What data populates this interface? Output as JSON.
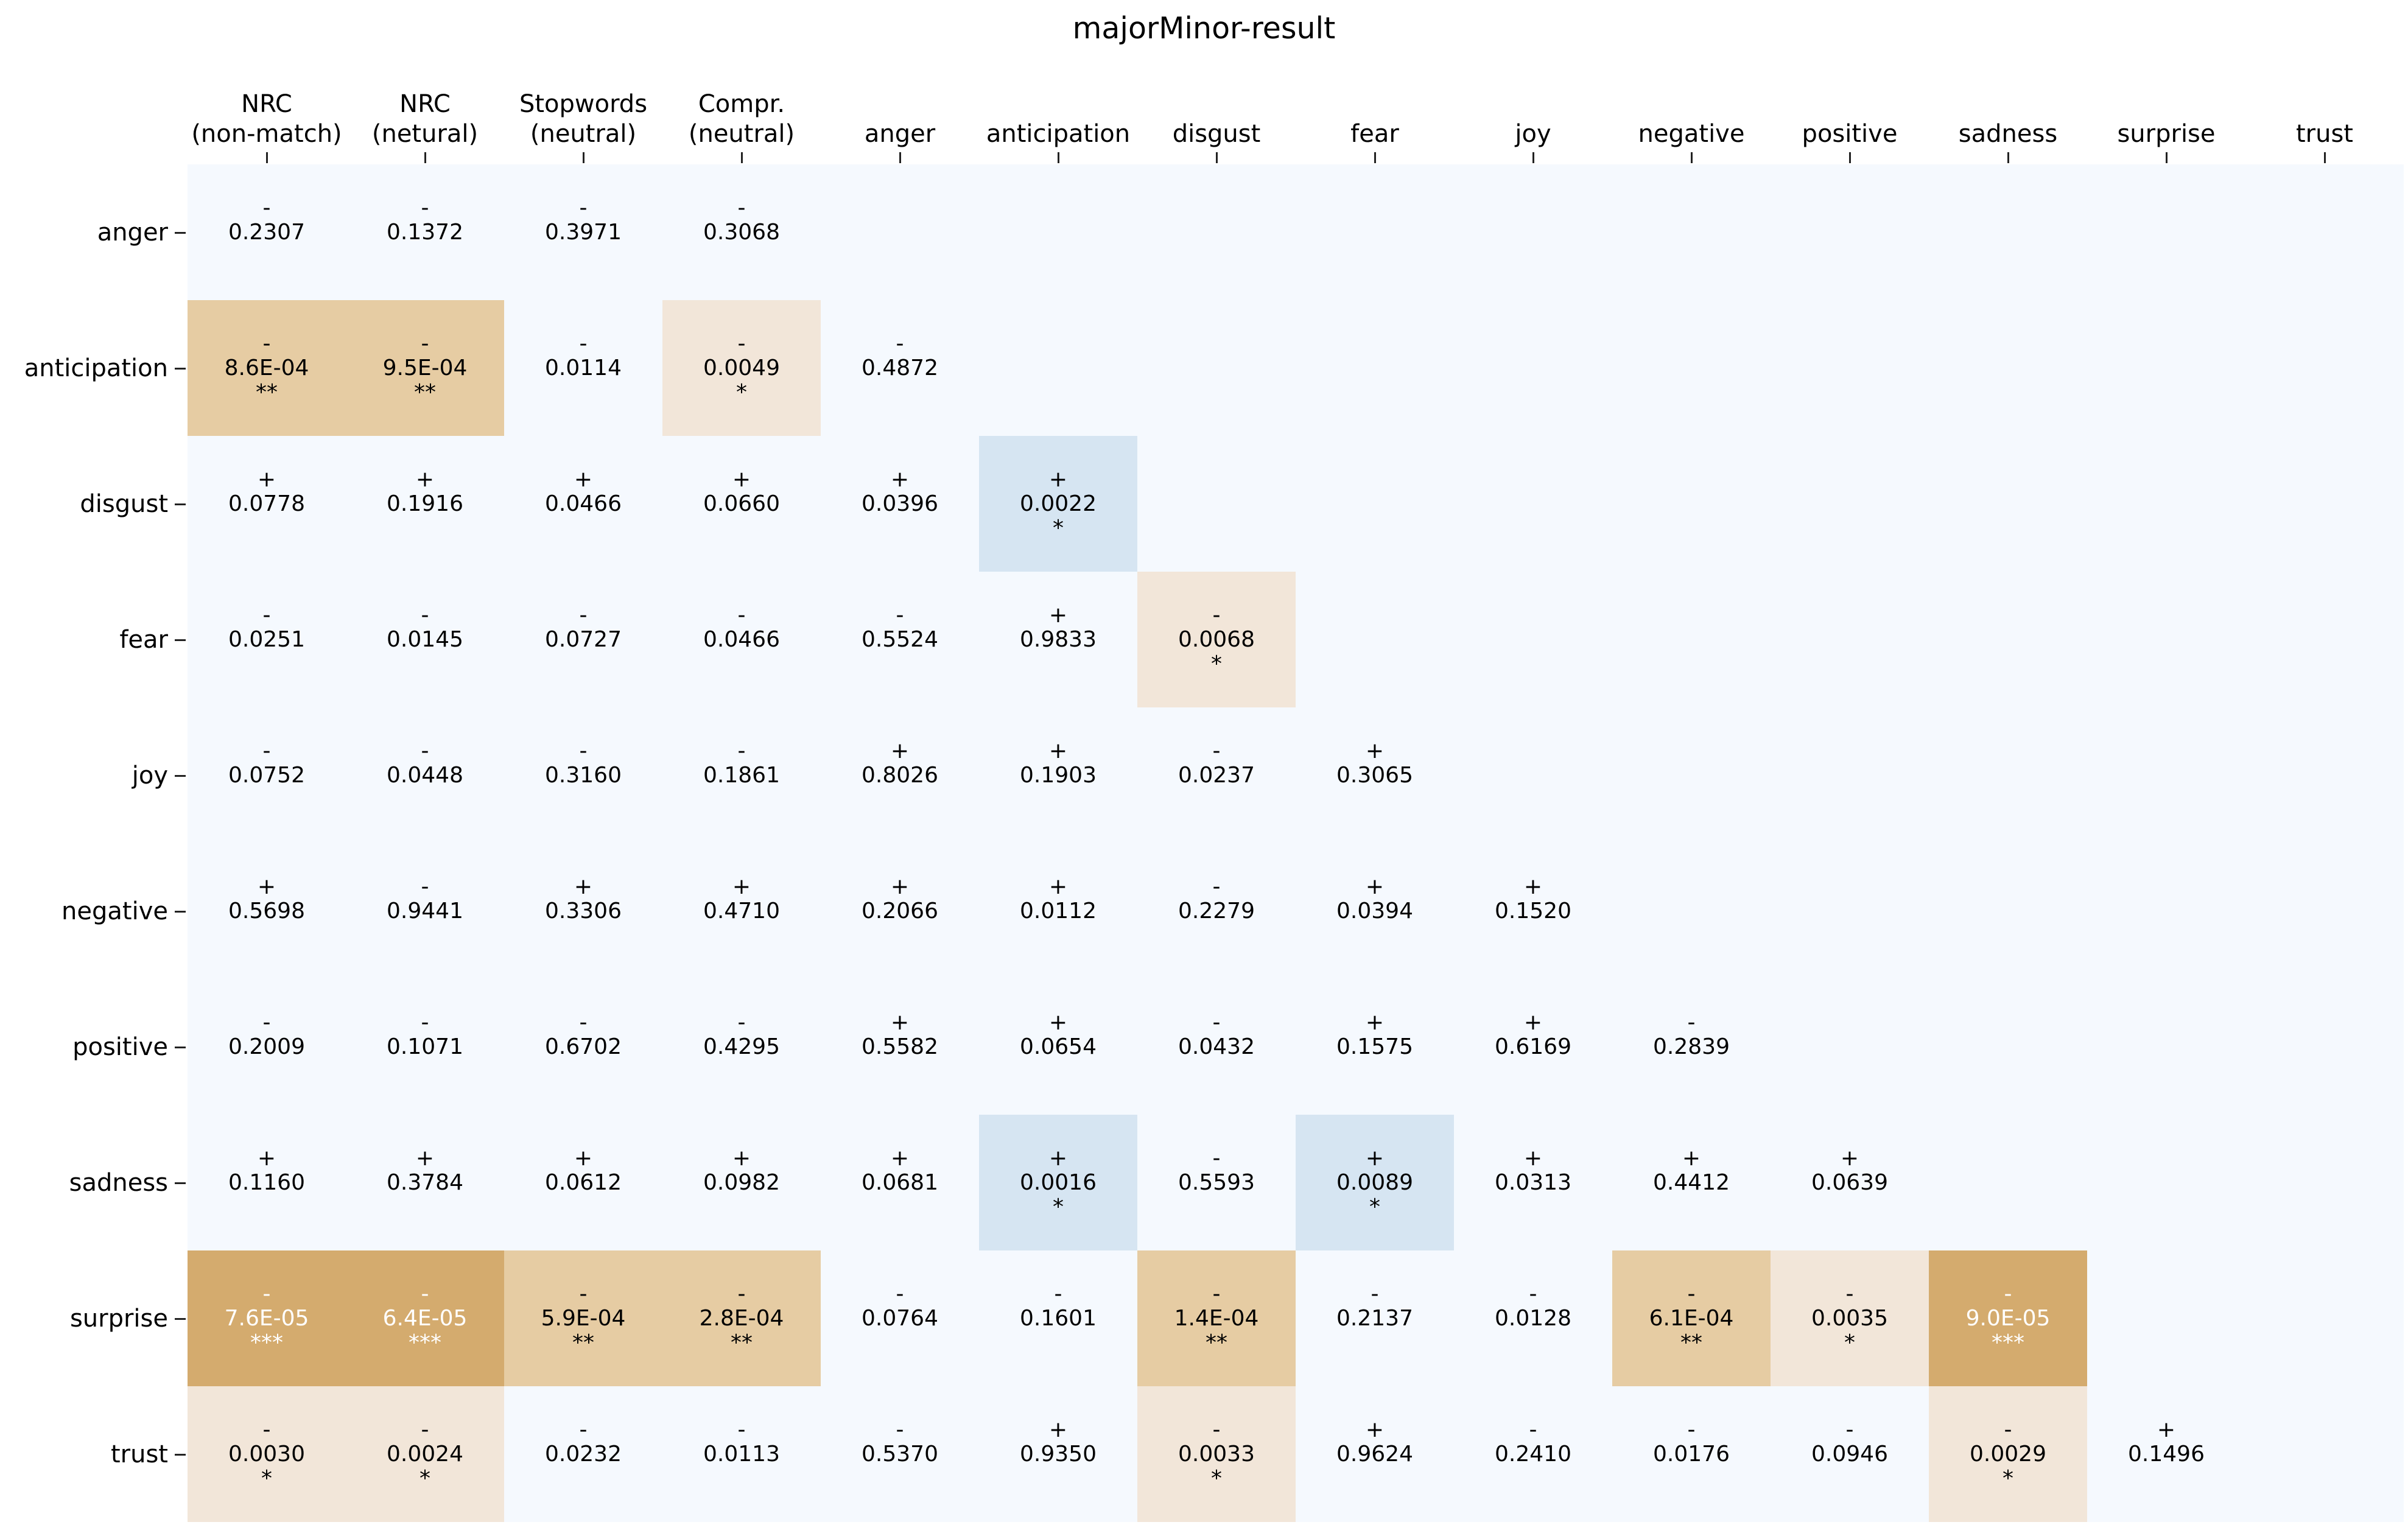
{
  "chart_data": {
    "type": "heatmap",
    "title": "majorMinor-result",
    "columns": [
      "NRC\n(non-match)",
      "NRC\n(netural)",
      "Stopwords\n(neutral)",
      "Compr.\n(neutral)",
      "anger",
      "anticipation",
      "disgust",
      "fear",
      "joy",
      "negative",
      "positive",
      "sadness",
      "surprise",
      "trust"
    ],
    "rows": [
      "anger",
      "anticipation",
      "disgust",
      "fear",
      "joy",
      "negative",
      "positive",
      "sadness",
      "surprise",
      "trust"
    ],
    "cells": [
      [
        [
          "-",
          "0.2307",
          ""
        ],
        [
          "-",
          "0.1372",
          ""
        ],
        [
          "-",
          "0.3971",
          ""
        ],
        [
          "-",
          "0.3068",
          ""
        ]
      ],
      [
        [
          "-",
          "8.6E-04",
          "**"
        ],
        [
          "-",
          "9.5E-04",
          "**"
        ],
        [
          "-",
          "0.0114",
          ""
        ],
        [
          "-",
          "0.0049",
          "*"
        ],
        [
          "-",
          "0.4872",
          ""
        ]
      ],
      [
        [
          "+",
          "0.0778",
          ""
        ],
        [
          "+",
          "0.1916",
          ""
        ],
        [
          "+",
          "0.0466",
          ""
        ],
        [
          "+",
          "0.0660",
          ""
        ],
        [
          "+",
          "0.0396",
          ""
        ],
        [
          "+",
          "0.0022",
          "*"
        ]
      ],
      [
        [
          "-",
          "0.0251",
          ""
        ],
        [
          "-",
          "0.0145",
          ""
        ],
        [
          "-",
          "0.0727",
          ""
        ],
        [
          "-",
          "0.0466",
          ""
        ],
        [
          "-",
          "0.5524",
          ""
        ],
        [
          "+",
          "0.9833",
          ""
        ],
        [
          "-",
          "0.0068",
          "*"
        ]
      ],
      [
        [
          "-",
          "0.0752",
          ""
        ],
        [
          "-",
          "0.0448",
          ""
        ],
        [
          "-",
          "0.3160",
          ""
        ],
        [
          "-",
          "0.1861",
          ""
        ],
        [
          "+",
          "0.8026",
          ""
        ],
        [
          "+",
          "0.1903",
          ""
        ],
        [
          "-",
          "0.0237",
          ""
        ],
        [
          "+",
          "0.3065",
          ""
        ]
      ],
      [
        [
          "+",
          "0.5698",
          ""
        ],
        [
          "-",
          "0.9441",
          ""
        ],
        [
          "+",
          "0.3306",
          ""
        ],
        [
          "+",
          "0.4710",
          ""
        ],
        [
          "+",
          "0.2066",
          ""
        ],
        [
          "+",
          "0.0112",
          ""
        ],
        [
          "-",
          "0.2279",
          ""
        ],
        [
          "+",
          "0.0394",
          ""
        ],
        [
          "+",
          "0.1520",
          ""
        ]
      ],
      [
        [
          "-",
          "0.2009",
          ""
        ],
        [
          "-",
          "0.1071",
          ""
        ],
        [
          "-",
          "0.6702",
          ""
        ],
        [
          "-",
          "0.4295",
          ""
        ],
        [
          "+",
          "0.5582",
          ""
        ],
        [
          "+",
          "0.0654",
          ""
        ],
        [
          "-",
          "0.0432",
          ""
        ],
        [
          "+",
          "0.1575",
          ""
        ],
        [
          "+",
          "0.6169",
          ""
        ],
        [
          "-",
          "0.2839",
          ""
        ]
      ],
      [
        [
          "+",
          "0.1160",
          ""
        ],
        [
          "+",
          "0.3784",
          ""
        ],
        [
          "+",
          "0.0612",
          ""
        ],
        [
          "+",
          "0.0982",
          ""
        ],
        [
          "+",
          "0.0681",
          ""
        ],
        [
          "+",
          "0.0016",
          "*"
        ],
        [
          "-",
          "0.5593",
          ""
        ],
        [
          "+",
          "0.0089",
          "*"
        ],
        [
          "+",
          "0.0313",
          ""
        ],
        [
          "+",
          "0.4412",
          ""
        ],
        [
          "+",
          "0.0639",
          ""
        ]
      ],
      [
        [
          "-",
          "7.6E-05",
          "***"
        ],
        [
          "-",
          "6.4E-05",
          "***"
        ],
        [
          "-",
          "5.9E-04",
          "**"
        ],
        [
          "-",
          "2.8E-04",
          "**"
        ],
        [
          "-",
          "0.0764",
          ""
        ],
        [
          "-",
          "0.1601",
          ""
        ],
        [
          "-",
          "1.4E-04",
          "**"
        ],
        [
          "-",
          "0.2137",
          ""
        ],
        [
          "-",
          "0.0128",
          ""
        ],
        [
          "-",
          "6.1E-04",
          "**"
        ],
        [
          "-",
          "0.0035",
          "*"
        ],
        [
          "-",
          "9.0E-05",
          "***"
        ]
      ],
      [
        [
          "-",
          "0.0030",
          "*"
        ],
        [
          "-",
          "0.0024",
          "*"
        ],
        [
          "-",
          "0.0232",
          ""
        ],
        [
          "-",
          "0.0113",
          ""
        ],
        [
          "-",
          "0.5370",
          ""
        ],
        [
          "+",
          "0.9350",
          ""
        ],
        [
          "-",
          "0.0033",
          "*"
        ],
        [
          "+",
          "0.9624",
          ""
        ],
        [
          "-",
          "0.2410",
          ""
        ],
        [
          "-",
          "0.0176",
          ""
        ],
        [
          "-",
          "0.0946",
          ""
        ],
        [
          "-",
          "0.0029",
          "*"
        ],
        [
          "+",
          "0.1496",
          ""
        ]
      ]
    ],
    "colors": {
      "background": "#f5f9fe",
      "neg_1": "#f2e6d9",
      "neg_2": "#e6cca3",
      "neg_3": "#d4ab6e",
      "pos_1": "#d6e5f2",
      "text_dark": "#000000",
      "text_light": "#ffffff"
    }
  }
}
